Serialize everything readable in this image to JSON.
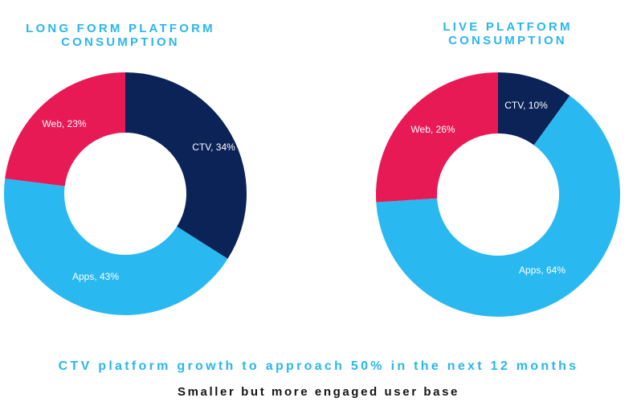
{
  "colors": {
    "ctv": "#0b2357",
    "apps": "#29b9f0",
    "web": "#e81a56",
    "title": "#29b6ef",
    "subline": "#141414"
  },
  "chart_data": [
    {
      "type": "pie",
      "title_lines": [
        "LONG FORM PLATFORM",
        "CONSUMPTION"
      ],
      "categories": [
        "CTV",
        "Apps",
        "Web"
      ],
      "values": [
        34,
        43,
        23
      ],
      "labels": [
        "CTV, 34%",
        "Apps, 43%",
        "Web, 23%"
      ]
    },
    {
      "type": "pie",
      "title_lines": [
        "LIVE PLATFORM",
        "CONSUMPTION"
      ],
      "categories": [
        "CTV",
        "Apps",
        "Web"
      ],
      "values": [
        10,
        64,
        26
      ],
      "labels": [
        "CTV, 10%",
        "Apps, 64%",
        "Web, 26%"
      ]
    }
  ],
  "footer": {
    "headline": "CTV platform growth to approach 50% in the next 12 months",
    "subline": "Smaller but more engaged user base"
  }
}
